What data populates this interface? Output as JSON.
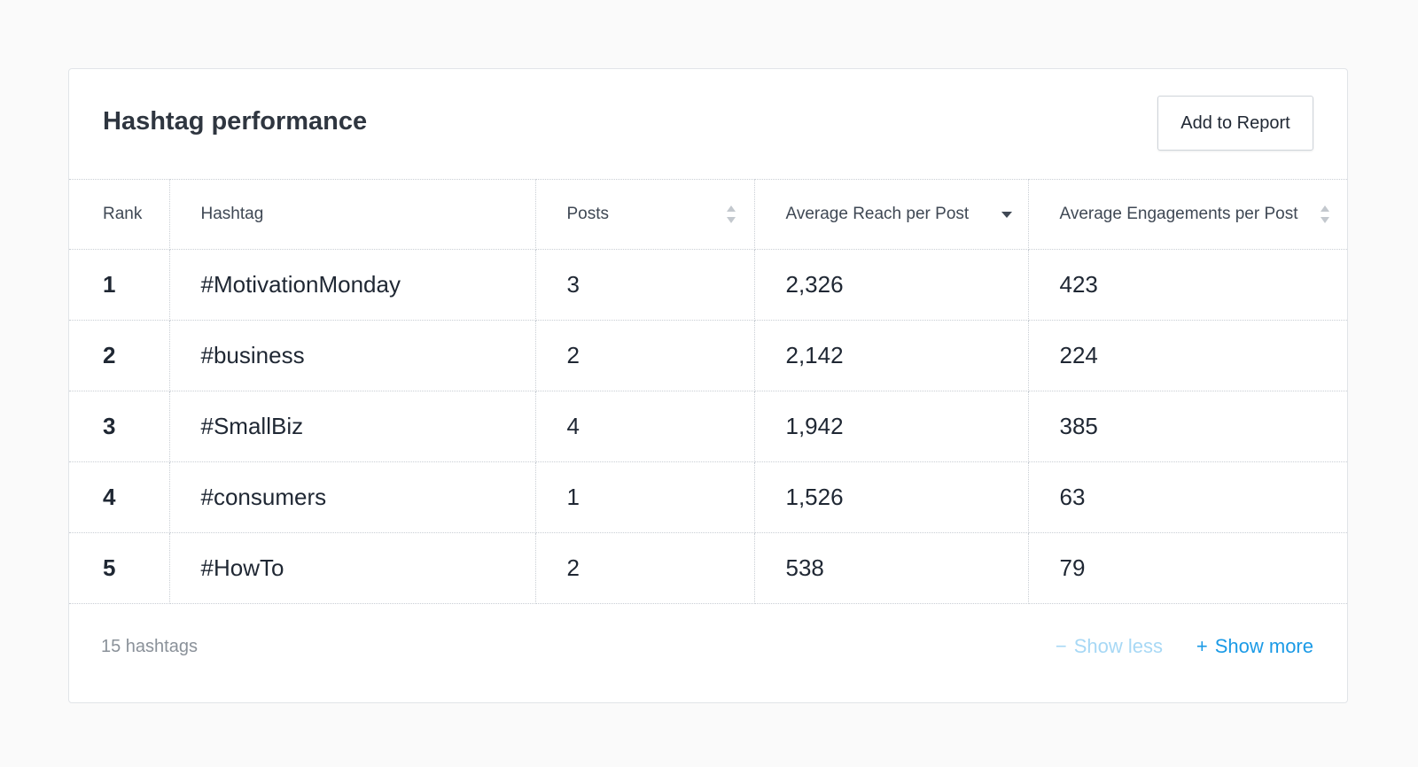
{
  "card": {
    "title": "Hashtag performance",
    "add_button_label": "Add to Report"
  },
  "table": {
    "headers": {
      "rank": "Rank",
      "hashtag": "Hashtag",
      "posts": "Posts",
      "reach": "Average Reach per Post",
      "engagements": "Average Engagements per Post"
    },
    "sort": {
      "active_column": "reach",
      "direction": "descending"
    },
    "rows": [
      {
        "rank": "1",
        "hashtag": "#MotivationMonday",
        "posts": "3",
        "reach": "2,326",
        "engagements": "423"
      },
      {
        "rank": "2",
        "hashtag": "#business",
        "posts": "2",
        "reach": "2,142",
        "engagements": "224"
      },
      {
        "rank": "3",
        "hashtag": "#SmallBiz",
        "posts": "4",
        "reach": "1,942",
        "engagements": "385"
      },
      {
        "rank": "4",
        "hashtag": "#consumers",
        "posts": "1",
        "reach": "1,526",
        "engagements": "63"
      },
      {
        "rank": "5",
        "hashtag": "#HowTo",
        "posts": "2",
        "reach": "538",
        "engagements": "79"
      }
    ]
  },
  "footer": {
    "count_text": "15 hashtags",
    "show_less_sign": "−",
    "show_less_label": "Show less",
    "show_more_sign": "+",
    "show_more_label": "Show more"
  },
  "colors": {
    "link_active": "#1a9ae6",
    "link_disabled": "#a7d8f5",
    "background": "#fafafa",
    "border": "#c9ced4"
  },
  "icons": {
    "posts_sort": "sort-both-icon",
    "reach_sort": "sort-down-icon",
    "engagements_sort": "sort-both-icon"
  }
}
